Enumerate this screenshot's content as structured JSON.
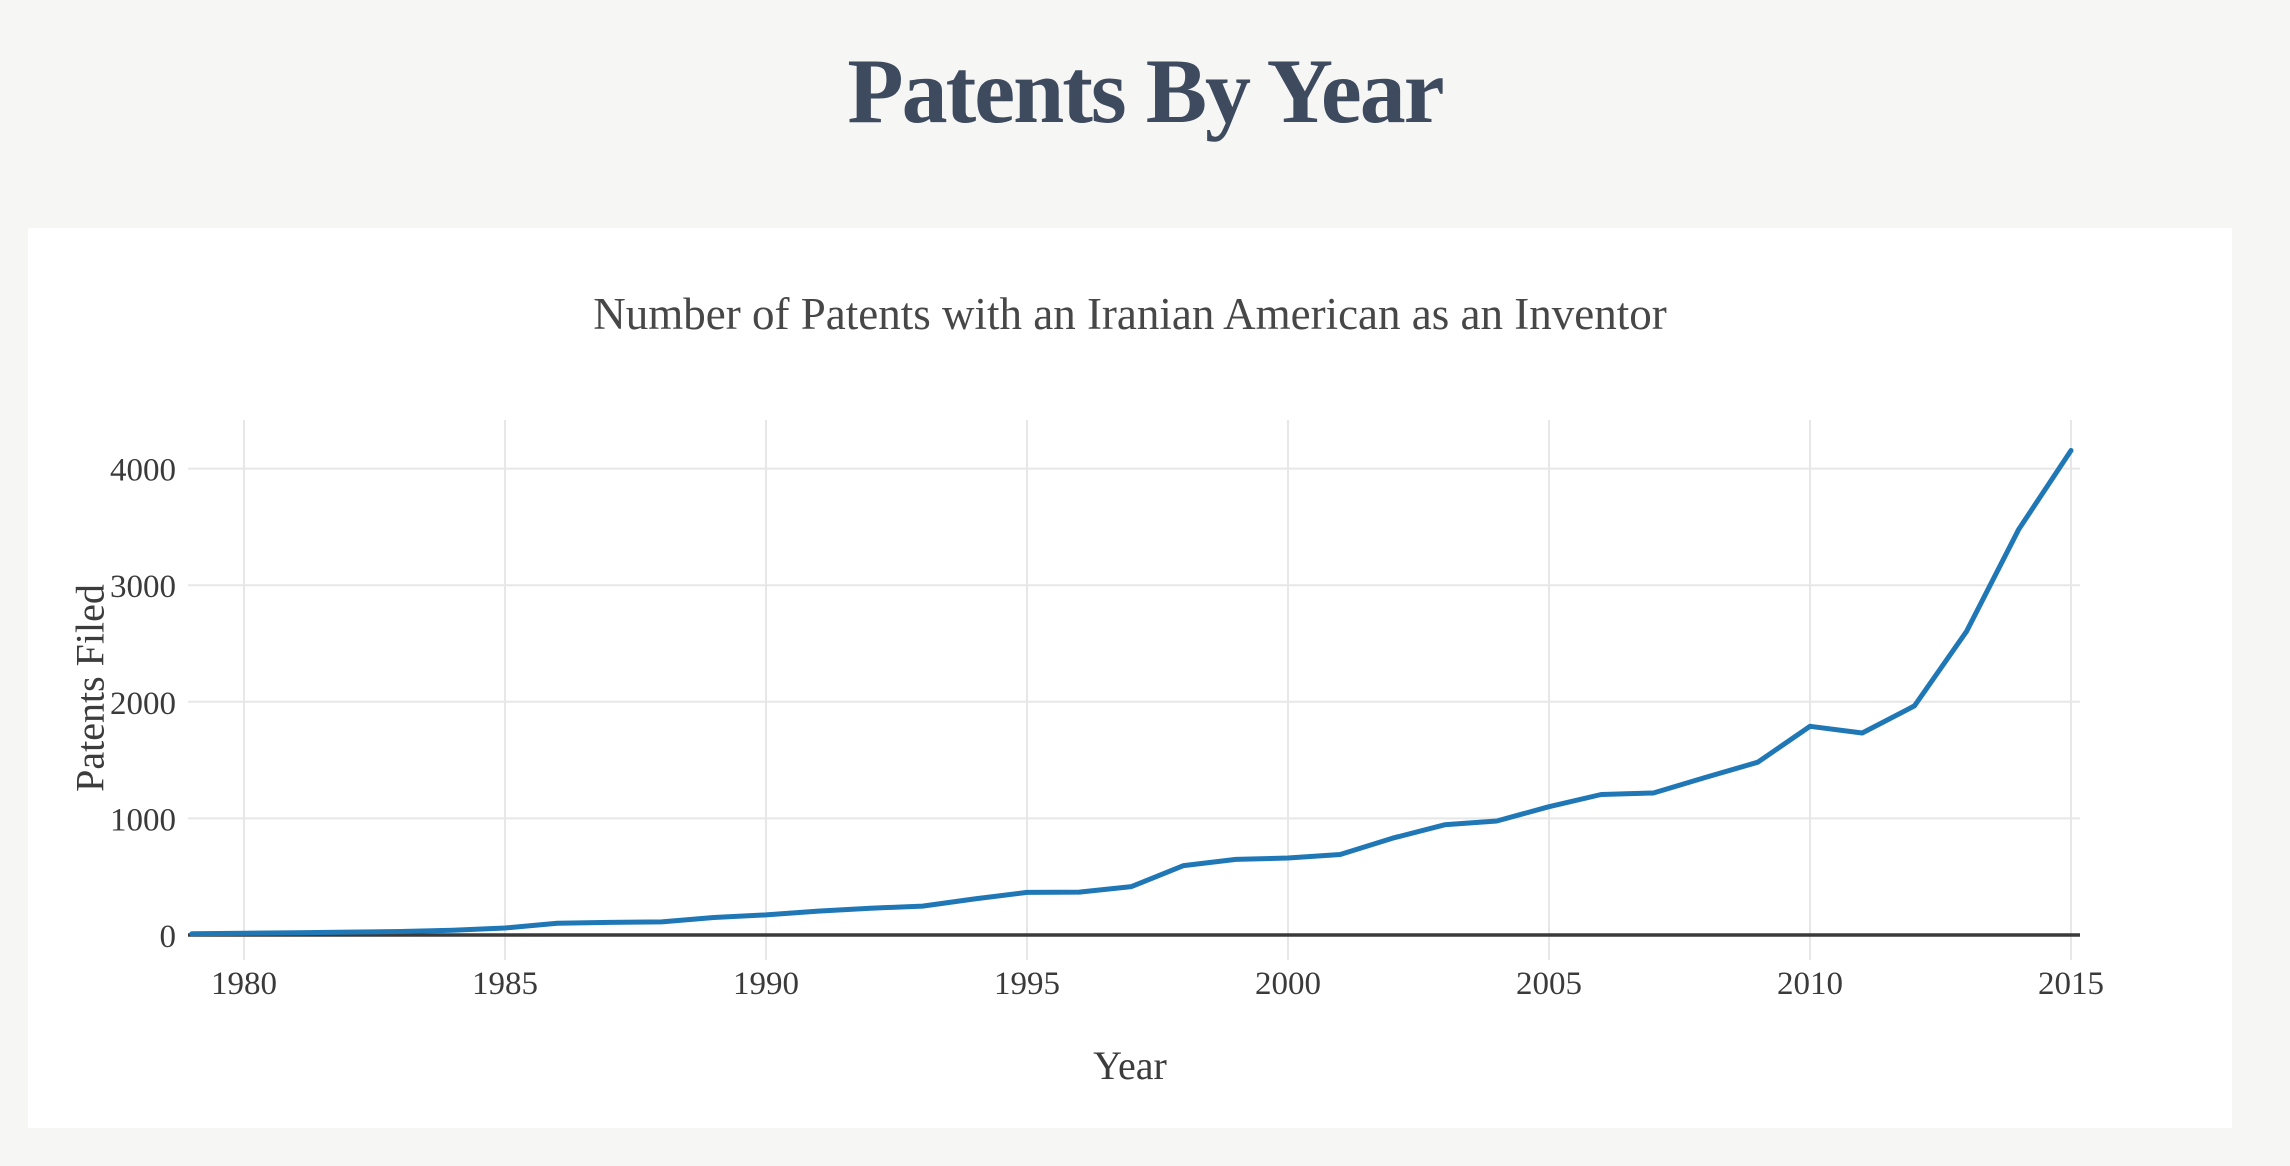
{
  "page": {
    "title": "Patents By Year",
    "background_color": "#f6f6f5",
    "card_color": "#ffffff",
    "title_color": "#3e4a5e"
  },
  "chart_data": {
    "type": "line",
    "title": "Number of Patents with an Iranian American as an Inventor",
    "xlabel": "Year",
    "ylabel": "Patents Filed",
    "x": [
      1979,
      1980,
      1981,
      1982,
      1983,
      1984,
      1985,
      1986,
      1987,
      1988,
      1989,
      1990,
      1991,
      1992,
      1993,
      1994,
      1995,
      1996,
      1997,
      1998,
      1999,
      2000,
      2001,
      2002,
      2003,
      2004,
      2005,
      2006,
      2007,
      2008,
      2009,
      2010,
      2011,
      2012,
      2013,
      2014,
      2015
    ],
    "values": [
      10,
      15,
      20,
      25,
      30,
      40,
      60,
      100,
      108,
      112,
      150,
      172,
      205,
      230,
      248,
      310,
      365,
      368,
      415,
      595,
      648,
      660,
      690,
      830,
      945,
      978,
      1100,
      1205,
      1218,
      1352,
      1482,
      1790,
      1732,
      1965,
      2605,
      3480,
      4155
    ],
    "xticks": [
      1980,
      1985,
      1990,
      1995,
      2000,
      2005,
      2010,
      2015
    ],
    "yticks": [
      0,
      1000,
      2000,
      3000,
      4000
    ],
    "xlim": [
      1978.9,
      2015.2
    ],
    "ylim": [
      0,
      4400
    ],
    "grid": true,
    "legend": "none",
    "line_color": "#2077b6",
    "grid_color": "#e7e7e7",
    "axis_line_color": "#3a3a3a",
    "tick_label_color": "#3a3a3a"
  }
}
